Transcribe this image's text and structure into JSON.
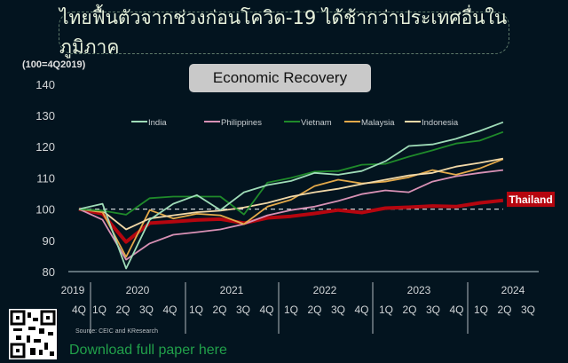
{
  "headline": "ไทยฟื้นตัวจากช่วงก่อนโควิด-19 ได้ช้ากว่าประเทศอื่นในภูมิภาค",
  "footer": {
    "source": "Source: CEIC and KResearch",
    "download_label": "Download full paper here"
  },
  "chart_data": {
    "type": "line",
    "title": "Economic Recovery",
    "ylabel": "(100=4Q2019)",
    "ylim": [
      80,
      140
    ],
    "yticks": [
      140,
      130,
      120,
      110,
      100,
      90,
      80
    ],
    "years": [
      "2019",
      "2020",
      "2021",
      "2022",
      "2023",
      "2024"
    ],
    "quarters": [
      "4Q",
      "1Q",
      "2Q",
      "3Q",
      "4Q",
      "1Q",
      "2Q",
      "3Q",
      "4Q",
      "1Q",
      "2Q",
      "3Q",
      "4Q",
      "1Q",
      "2Q",
      "3Q",
      "4Q",
      "1Q",
      "2Q",
      "3Q"
    ],
    "x": [
      "4Q2019",
      "1Q2020",
      "2Q2020",
      "3Q2020",
      "4Q2020",
      "1Q2021",
      "2Q2021",
      "3Q2021",
      "4Q2021",
      "1Q2022",
      "2Q2022",
      "3Q2022",
      "4Q2022",
      "1Q2023",
      "2Q2023",
      "3Q2023",
      "4Q2023",
      "1Q2024",
      "2Q2024"
    ],
    "reference_line": 100,
    "legend_position": "top",
    "series": [
      {
        "name": "India",
        "color": "#9fdcb8",
        "values": [
          100,
          101.7,
          81,
          96.6,
          101.7,
          104.5,
          99.7,
          105.4,
          107.7,
          109,
          111.6,
          111,
          112.2,
          115.3,
          120.2,
          120.7,
          122.5,
          125,
          127.8
        ]
      },
      {
        "name": "Philippines",
        "color": "#d891b5",
        "values": [
          100,
          96.6,
          83.8,
          89,
          91.8,
          92.6,
          93.5,
          95.2,
          98,
          99.7,
          100.8,
          102.6,
          104.8,
          106,
          105.4,
          108.8,
          110.5,
          111.6,
          112.5
        ]
      },
      {
        "name": "Vietnam",
        "color": "#1f8a2a",
        "values": [
          100,
          99.5,
          98.2,
          103.5,
          104,
          104,
          104,
          98.3,
          108.5,
          110,
          112,
          112.2,
          114.2,
          114.5,
          116.8,
          118.8,
          121,
          121.9,
          124.7
        ]
      },
      {
        "name": "Malaysia",
        "color": "#e3a94a",
        "values": [
          100,
          99,
          84.7,
          99.7,
          97,
          98.5,
          98,
          95.2,
          100.8,
          103,
          107.4,
          109.4,
          108.2,
          108.8,
          110.2,
          112.5,
          111,
          113,
          116
        ]
      },
      {
        "name": "Indonesia",
        "color": "#f2d9a8",
        "values": [
          100,
          99.5,
          93.5,
          97,
          98,
          99,
          99.5,
          100.5,
          102,
          104,
          105.4,
          106.5,
          108,
          109.4,
          110.8,
          111.6,
          113.6,
          114.8,
          116.2
        ]
      },
      {
        "name": "Thailand",
        "color": "#b5060f",
        "values": [
          100,
          98.5,
          89.5,
          95.5,
          96,
          96.5,
          96.8,
          95.5,
          97.2,
          97.7,
          98.6,
          99.7,
          98.9,
          100.3,
          100.6,
          101,
          100.8,
          102,
          102.8
        ]
      }
    ]
  }
}
